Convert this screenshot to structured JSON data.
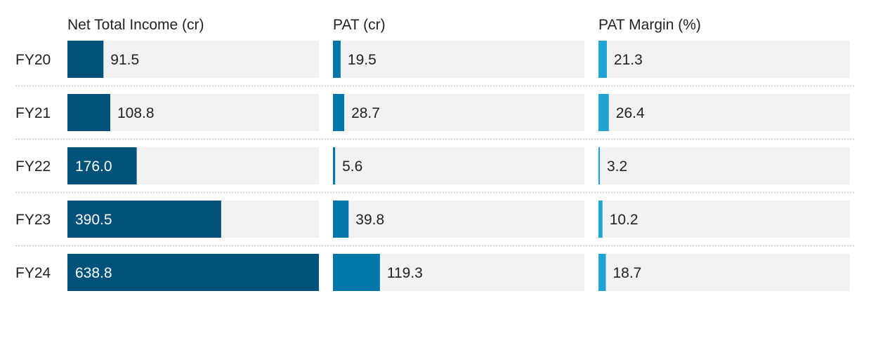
{
  "chart_data": {
    "type": "bar",
    "orientation": "horizontal",
    "categories": [
      "FY20",
      "FY21",
      "FY22",
      "FY23",
      "FY24"
    ],
    "series": [
      {
        "name": "Net Total Income (cr)",
        "values": [
          91.5,
          108.8,
          176.0,
          390.5,
          638.8
        ],
        "labels": [
          "91.5",
          "108.8",
          "176.0",
          "390.5",
          "638.8"
        ],
        "max": 638.8,
        "color": "#00527a"
      },
      {
        "name": "PAT (cr)",
        "values": [
          19.5,
          28.7,
          5.6,
          39.8,
          119.3
        ],
        "labels": [
          "19.5",
          "28.7",
          "5.6",
          "39.8",
          "119.3"
        ],
        "max": 638.8,
        "color": "#0077a8"
      },
      {
        "name": "PAT Margin (%)",
        "values": [
          21.3,
          26.4,
          3.2,
          10.2,
          18.7
        ],
        "labels": [
          "21.3",
          "26.4",
          "3.2",
          "10.2",
          "18.7"
        ],
        "max": 638.8,
        "color": "#1fa3d4"
      }
    ],
    "track_color": "#f2f2f2",
    "grid": false
  }
}
